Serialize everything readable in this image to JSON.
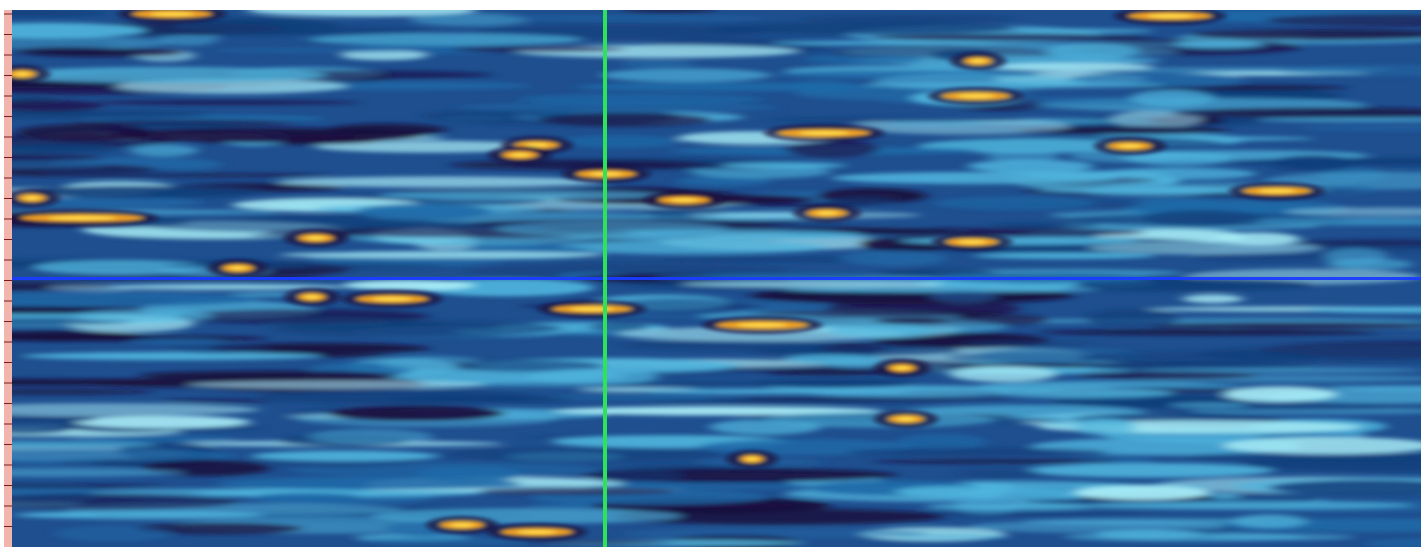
{
  "viewer": {
    "colormap": [
      "#1a0a3a",
      "#123f7a",
      "#1f6aa8",
      "#4fb4dc",
      "#a8ecf6",
      "#f0a020",
      "#ffd84a"
    ],
    "background_color": "#1f4f8f",
    "horizontal_cursor_color": "#1a3cff",
    "vertical_cursor_color": "#2ee25a",
    "ruler_color": "#f2b5ae"
  }
}
